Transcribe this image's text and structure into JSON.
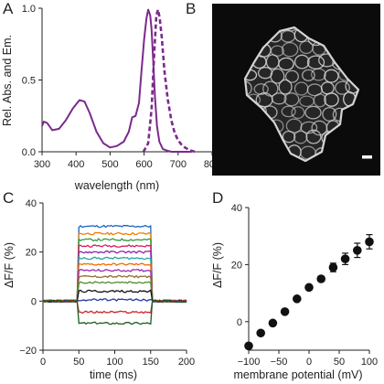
{
  "panels": {
    "A": {
      "letter": "A"
    },
    "B": {
      "letter": "B"
    },
    "C": {
      "letter": "C"
    },
    "D": {
      "letter": "D"
    }
  },
  "chart_data": [
    {
      "panel": "A",
      "type": "line",
      "xlabel": "wavelength (nm)",
      "ylabel": "Rel. Abs. and Em.",
      "xlim": [
        300,
        800
      ],
      "ylim": [
        0,
        1.0
      ],
      "xticks": [
        300,
        400,
        500,
        600,
        700,
        800
      ],
      "yticks": [
        0.0,
        0.5,
        1.0
      ],
      "ytick_labels": [
        "0.0",
        "0.5",
        "1.0"
      ],
      "grid": false,
      "series": [
        {
          "style": "solid",
          "color": "#7b2a8c",
          "x": [
            300,
            305,
            315,
            330,
            350,
            370,
            390,
            410,
            425,
            440,
            460,
            480,
            500,
            520,
            540,
            555,
            565,
            575,
            585,
            592,
            600,
            607,
            612,
            618,
            622,
            627,
            632,
            638,
            645,
            655,
            665,
            680,
            700,
            720,
            740
          ],
          "y": [
            0.18,
            0.21,
            0.2,
            0.15,
            0.16,
            0.22,
            0.3,
            0.36,
            0.35,
            0.27,
            0.14,
            0.06,
            0.03,
            0.04,
            0.07,
            0.14,
            0.24,
            0.25,
            0.34,
            0.55,
            0.78,
            0.93,
            0.99,
            0.95,
            0.85,
            0.63,
            0.38,
            0.18,
            0.07,
            0.02,
            0.01,
            0.0,
            0.0,
            0.0,
            0.0
          ]
        },
        {
          "style": "dashed",
          "color": "#7b2a8c",
          "x": [
            598,
            612,
            622,
            630,
            636,
            641,
            646,
            652,
            660,
            670,
            680,
            690,
            700,
            710,
            720,
            735,
            750
          ],
          "y": [
            0.0,
            0.06,
            0.3,
            0.7,
            0.95,
            0.99,
            0.93,
            0.8,
            0.56,
            0.36,
            0.22,
            0.13,
            0.08,
            0.05,
            0.03,
            0.01,
            0.0
          ]
        }
      ]
    },
    {
      "panel": "C",
      "type": "line",
      "xlabel": "time (ms)",
      "ylabel": "ΔF/F (%)",
      "xlim": [
        0,
        200
      ],
      "ylim": [
        -20,
        40
      ],
      "xticks": [
        0,
        50,
        100,
        150,
        200
      ],
      "yticks": [
        -20,
        0,
        20,
        40
      ],
      "grid": false,
      "pulse_window_ms": [
        50,
        150
      ],
      "step_levels_percent": [
        {
          "color": "#1565c0",
          "value": 30.5
        },
        {
          "color": "#f57c00",
          "value": 27.5
        },
        {
          "color": "#2e9e3e",
          "value": 25.0
        },
        {
          "color": "#d81b60",
          "value": 22.5
        },
        {
          "color": "#8e24aa",
          "value": 20.0
        },
        {
          "color": "#26a69a",
          "value": 17.5
        },
        {
          "color": "#ef6c00",
          "value": 15.0
        },
        {
          "color": "#9c27b0",
          "value": 12.5
        },
        {
          "color": "#8d6e2f",
          "value": 10.0
        },
        {
          "color": "#558b2f",
          "value": 7.5
        },
        {
          "color": "#111111",
          "value": 4.0
        },
        {
          "color": "#1e3c9c",
          "value": 0.5
        },
        {
          "color": "#c62828",
          "value": -4.5
        },
        {
          "color": "#1b5e20",
          "value": -9.0
        }
      ]
    },
    {
      "panel": "D",
      "type": "scatter",
      "xlabel": "membrane potential (mV)",
      "ylabel": "ΔF/F (%)",
      "xlim": [
        -100,
        100
      ],
      "ylim": [
        -10,
        40
      ],
      "xticks": [
        -100,
        -50,
        0,
        50,
        100
      ],
      "yticks": [
        0,
        20,
        40
      ],
      "grid": false,
      "x": [
        -100,
        -80,
        -60,
        -40,
        -20,
        0,
        20,
        40,
        60,
        80,
        100
      ],
      "y": [
        -8.5,
        -4.0,
        -0.5,
        3.5,
        8.0,
        12.0,
        15.0,
        19.0,
        22.0,
        25.0,
        28.0
      ],
      "errors": [
        0.8,
        0.6,
        0.6,
        0.6,
        0.8,
        0.8,
        0.9,
        1.5,
        2.0,
        2.5,
        2.5
      ]
    }
  ],
  "image_panel": {
    "panel": "B",
    "colors": {
      "background": "#0b0b0b",
      "membrane": "#d4d4d4"
    }
  }
}
